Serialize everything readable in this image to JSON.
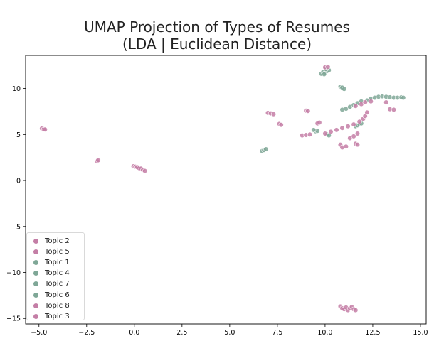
{
  "chart_data": {
    "type": "scatter",
    "title": "UMAP Projection of Types of Resumes\n(LDA | Euclidean Distance)",
    "title_lines": [
      "UMAP Projection of Types of Resumes",
      "(LDA | Euclidean Distance)"
    ],
    "xlabel": "",
    "ylabel": "",
    "xlim": [
      -5.7,
      15.3
    ],
    "ylim": [
      -15.6,
      13.6
    ],
    "xticks": [
      -5.0,
      -2.5,
      0.0,
      2.5,
      5.0,
      7.5,
      10.0,
      12.5,
      15.0
    ],
    "xtick_labels": [
      "−5.0",
      "−2.5",
      "0.0",
      "2.5",
      "5.0",
      "7.5",
      "10.0",
      "12.5",
      "15.0"
    ],
    "yticks": [
      -15,
      -10,
      -5,
      0,
      5,
      10
    ],
    "ytick_labels": [
      "−15",
      "−10",
      "−5",
      "0",
      "5",
      "10"
    ],
    "grid": false,
    "legend_position": "lower-left",
    "colors": {
      "pink": "#c47ea6",
      "green": "#7fa797"
    },
    "series": [
      {
        "name": "Topic 2",
        "color": "#c47ea6",
        "points": [
          [
            -4.85,
            5.65
          ],
          [
            -4.75,
            5.58
          ],
          [
            -4.68,
            5.55
          ],
          [
            -1.95,
            2.1
          ],
          [
            -1.9,
            2.2
          ],
          [
            -0.05,
            1.55
          ],
          [
            0.05,
            1.5
          ],
          [
            0.15,
            1.45
          ],
          [
            9.0,
            7.6
          ],
          [
            9.1,
            7.55
          ]
        ]
      },
      {
        "name": "Topic 5",
        "color": "#c47ea6",
        "points": [
          [
            0.25,
            1.35
          ],
          [
            0.35,
            1.3
          ],
          [
            0.45,
            1.15
          ],
          [
            0.55,
            1.05
          ],
          [
            7.0,
            7.35
          ],
          [
            7.15,
            7.3
          ],
          [
            7.3,
            7.2
          ],
          [
            7.6,
            6.15
          ],
          [
            7.7,
            6.05
          ]
        ]
      },
      {
        "name": "Topic 1",
        "color": "#7fa797",
        "points": [
          [
            6.7,
            3.2
          ],
          [
            6.8,
            3.3
          ],
          [
            6.9,
            3.4
          ],
          [
            9.5,
            5.35
          ],
          [
            9.6,
            5.4
          ],
          [
            10.1,
            5.0
          ],
          [
            10.2,
            4.9
          ],
          [
            9.4,
            5.5
          ]
        ]
      },
      {
        "name": "Topic 4",
        "color": "#7fa797",
        "points": [
          [
            9.8,
            11.6
          ],
          [
            9.9,
            11.8
          ],
          [
            10.0,
            11.7
          ],
          [
            10.1,
            11.9
          ],
          [
            10.2,
            12.0
          ],
          [
            9.95,
            11.55
          ],
          [
            10.05,
            12.1
          ]
        ]
      },
      {
        "name": "Topic 7",
        "color": "#7fa797",
        "points": [
          [
            10.8,
            10.2
          ],
          [
            10.9,
            10.1
          ],
          [
            11.0,
            9.95
          ],
          [
            10.9,
            7.7
          ],
          [
            11.1,
            7.8
          ],
          [
            11.3,
            8.0
          ],
          [
            11.5,
            8.2
          ],
          [
            11.7,
            8.4
          ],
          [
            11.9,
            8.6
          ]
        ]
      },
      {
        "name": "Topic 6",
        "color": "#7fa797",
        "points": [
          [
            11.6,
            5.9
          ],
          [
            11.7,
            6.0
          ],
          [
            11.8,
            6.1
          ],
          [
            11.9,
            6.2
          ],
          [
            12.2,
            8.7
          ],
          [
            12.4,
            8.9
          ],
          [
            12.6,
            9.0
          ],
          [
            12.8,
            9.1
          ],
          [
            13.0,
            9.15
          ],
          [
            13.2,
            9.1
          ],
          [
            13.4,
            9.05
          ],
          [
            13.6,
            9.0
          ],
          [
            13.8,
            9.0
          ],
          [
            14.0,
            9.05
          ],
          [
            14.1,
            9.0
          ]
        ]
      },
      {
        "name": "Topic 8",
        "color": "#c47ea6",
        "points": [
          [
            8.8,
            4.9
          ],
          [
            9.0,
            4.95
          ],
          [
            9.2,
            5.0
          ],
          [
            9.6,
            6.2
          ],
          [
            9.7,
            6.3
          ],
          [
            10.0,
            5.1
          ],
          [
            10.3,
            5.3
          ],
          [
            10.6,
            5.5
          ],
          [
            10.9,
            5.7
          ],
          [
            11.2,
            5.9
          ],
          [
            11.5,
            6.1
          ],
          [
            11.8,
            6.4
          ],
          [
            12.0,
            6.7
          ],
          [
            12.1,
            7.0
          ],
          [
            12.2,
            7.4
          ],
          [
            11.6,
            8.1
          ],
          [
            11.9,
            8.3
          ],
          [
            12.1,
            8.5
          ],
          [
            12.4,
            8.6
          ],
          [
            13.2,
            8.5
          ],
          [
            13.4,
            7.75
          ],
          [
            13.6,
            7.7
          ]
        ]
      },
      {
        "name": "Topic 3",
        "color": "#c47ea6",
        "points": [
          [
            10.0,
            12.3
          ],
          [
            10.15,
            12.35
          ],
          [
            10.8,
            3.9
          ],
          [
            10.9,
            3.6
          ],
          [
            11.1,
            3.7
          ],
          [
            11.3,
            4.6
          ],
          [
            11.5,
            4.8
          ],
          [
            11.7,
            5.1
          ],
          [
            11.6,
            4.0
          ],
          [
            11.7,
            3.9
          ],
          [
            10.8,
            -13.7
          ],
          [
            10.9,
            -13.9
          ],
          [
            11.0,
            -14.0
          ],
          [
            11.1,
            -13.8
          ],
          [
            11.2,
            -14.1
          ],
          [
            11.3,
            -13.9
          ],
          [
            11.4,
            -13.75
          ],
          [
            11.5,
            -14.0
          ],
          [
            11.6,
            -14.1
          ]
        ]
      }
    ]
  }
}
